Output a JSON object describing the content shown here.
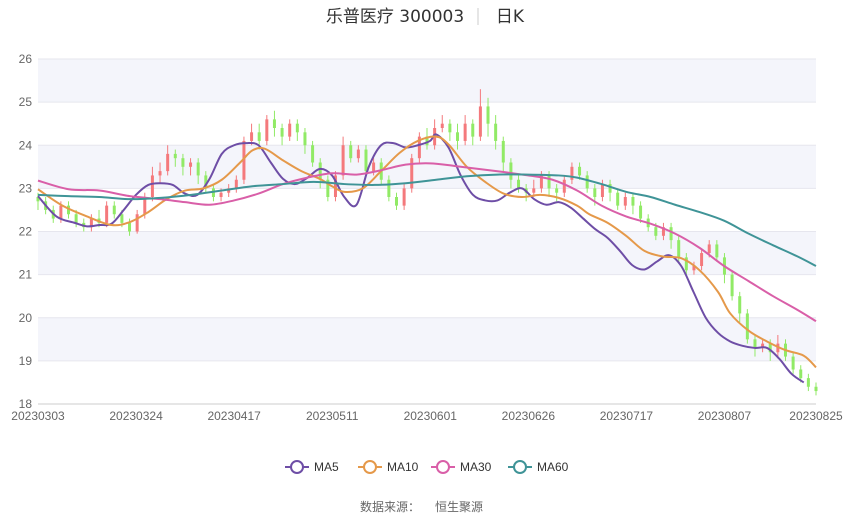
{
  "chart_data": {
    "type": "candlestick",
    "title": "乐普医疗 300003",
    "period_label": "日K",
    "source_label": "数据来源：",
    "source_name": "恒生聚源",
    "ylim": [
      18,
      26
    ],
    "y_ticks": [
      18,
      19,
      20,
      21,
      22,
      23,
      24,
      25,
      26
    ],
    "x_tick_labels": [
      "20230303",
      "20230324",
      "20230417",
      "20230511",
      "20230601",
      "20230626",
      "20230717",
      "20230807",
      "20230825"
    ],
    "x_tick_index": [
      0,
      15,
      30,
      45,
      60,
      75,
      90,
      105,
      119
    ],
    "colors": {
      "up": "#f4797c",
      "down": "#91ea66",
      "MA5": "#6e4ea6",
      "MA10": "#e5994a",
      "MA30": "#d95fa8",
      "MA60": "#3f9497",
      "grid": "#e6e6ee",
      "band": "#f4f5fb"
    },
    "legend": [
      "MA5",
      "MA10",
      "MA30",
      "MA60"
    ],
    "ma_series": [
      {
        "name": "MA5",
        "color_key": "MA5",
        "points": [
          [
            0,
            22.82
          ],
          [
            3,
            22.35
          ],
          [
            6,
            22.2
          ],
          [
            8,
            22.12
          ],
          [
            10,
            22.15
          ],
          [
            12,
            22.18
          ],
          [
            14,
            22.5
          ],
          [
            16,
            22.85
          ],
          [
            18,
            23.08
          ],
          [
            20,
            23.12
          ],
          [
            22,
            23.08
          ],
          [
            24,
            22.88
          ],
          [
            26,
            22.85
          ],
          [
            28,
            23.22
          ],
          [
            30,
            23.8
          ],
          [
            32,
            24.0
          ],
          [
            34,
            24.05
          ],
          [
            36,
            24.0
          ],
          [
            38,
            23.6
          ],
          [
            40,
            23.22
          ],
          [
            42,
            23.1
          ],
          [
            44,
            23.25
          ],
          [
            46,
            23.45
          ],
          [
            48,
            23.3
          ],
          [
            50,
            22.8
          ],
          [
            52,
            22.62
          ],
          [
            54,
            23.5
          ],
          [
            56,
            24.0
          ],
          [
            58,
            24.05
          ],
          [
            60,
            23.95
          ],
          [
            62,
            24.0
          ],
          [
            64,
            24.1
          ],
          [
            65,
            24.25
          ],
          [
            67,
            23.95
          ],
          [
            69,
            23.3
          ],
          [
            71,
            22.85
          ],
          [
            73,
            22.72
          ],
          [
            75,
            22.72
          ],
          [
            77,
            22.9
          ],
          [
            79,
            23.0
          ],
          [
            81,
            22.75
          ],
          [
            83,
            22.62
          ],
          [
            85,
            22.68
          ],
          [
            87,
            22.55
          ],
          [
            89,
            22.3
          ],
          [
            91,
            22.05
          ],
          [
            93,
            21.85
          ],
          [
            95,
            21.55
          ],
          [
            97,
            21.22
          ],
          [
            99,
            21.12
          ],
          [
            101,
            21.3
          ],
          [
            103,
            21.45
          ],
          [
            105,
            21.2
          ],
          [
            107,
            20.6
          ],
          [
            109,
            20.0
          ],
          [
            111,
            19.65
          ],
          [
            113,
            19.45
          ],
          [
            115,
            19.35
          ],
          [
            117,
            19.3
          ],
          [
            119,
            19.3
          ],
          [
            121,
            19.05
          ],
          [
            123,
            18.7
          ],
          [
            125,
            18.5
          ]
        ]
      },
      {
        "name": "MA10",
        "color_key": "MA10",
        "points": [
          [
            0,
            22.98
          ],
          [
            4,
            22.6
          ],
          [
            8,
            22.35
          ],
          [
            12,
            22.15
          ],
          [
            15,
            22.22
          ],
          [
            18,
            22.45
          ],
          [
            21,
            22.75
          ],
          [
            24,
            22.95
          ],
          [
            27,
            23.0
          ],
          [
            30,
            23.2
          ],
          [
            33,
            23.6
          ],
          [
            35,
            23.88
          ],
          [
            37,
            23.92
          ],
          [
            40,
            23.65
          ],
          [
            43,
            23.4
          ],
          [
            46,
            23.22
          ],
          [
            48,
            23.05
          ],
          [
            50,
            22.92
          ],
          [
            53,
            23.0
          ],
          [
            56,
            23.4
          ],
          [
            59,
            23.82
          ],
          [
            62,
            24.1
          ],
          [
            65,
            24.2
          ],
          [
            67,
            24.02
          ],
          [
            70,
            23.5
          ],
          [
            73,
            23.15
          ],
          [
            76,
            22.88
          ],
          [
            79,
            22.8
          ],
          [
            82,
            22.85
          ],
          [
            85,
            22.78
          ],
          [
            88,
            22.6
          ],
          [
            90,
            22.4
          ],
          [
            93,
            22.2
          ],
          [
            96,
            21.9
          ],
          [
            99,
            21.55
          ],
          [
            102,
            21.42
          ],
          [
            105,
            21.38
          ],
          [
            108,
            21.1
          ],
          [
            111,
            20.6
          ],
          [
            113,
            20.1
          ],
          [
            116,
            19.7
          ],
          [
            119,
            19.45
          ],
          [
            122,
            19.25
          ],
          [
            125,
            19.12
          ],
          [
            127,
            18.85
          ]
        ]
      },
      {
        "name": "MA30",
        "color_key": "MA30",
        "points": [
          [
            0,
            23.18
          ],
          [
            5,
            22.98
          ],
          [
            10,
            22.95
          ],
          [
            15,
            22.82
          ],
          [
            20,
            22.75
          ],
          [
            24,
            22.68
          ],
          [
            28,
            22.62
          ],
          [
            32,
            22.72
          ],
          [
            36,
            22.88
          ],
          [
            40,
            23.1
          ],
          [
            44,
            23.25
          ],
          [
            48,
            23.35
          ],
          [
            52,
            23.32
          ],
          [
            56,
            23.42
          ],
          [
            60,
            23.55
          ],
          [
            64,
            23.58
          ],
          [
            68,
            23.52
          ],
          [
            72,
            23.45
          ],
          [
            76,
            23.38
          ],
          [
            80,
            23.3
          ],
          [
            84,
            23.2
          ],
          [
            88,
            22.95
          ],
          [
            92,
            22.6
          ],
          [
            96,
            22.35
          ],
          [
            100,
            22.18
          ],
          [
            104,
            21.95
          ],
          [
            108,
            21.62
          ],
          [
            112,
            21.2
          ],
          [
            116,
            20.85
          ],
          [
            120,
            20.5
          ],
          [
            124,
            20.18
          ],
          [
            127,
            19.92
          ]
        ]
      },
      {
        "name": "MA60",
        "color_key": "MA60",
        "points": [
          [
            0,
            22.85
          ],
          [
            5,
            22.82
          ],
          [
            10,
            22.8
          ],
          [
            15,
            22.75
          ],
          [
            20,
            22.78
          ],
          [
            25,
            22.85
          ],
          [
            30,
            22.95
          ],
          [
            35,
            23.05
          ],
          [
            40,
            23.1
          ],
          [
            45,
            23.15
          ],
          [
            50,
            23.1
          ],
          [
            55,
            23.08
          ],
          [
            60,
            23.12
          ],
          [
            65,
            23.2
          ],
          [
            70,
            23.28
          ],
          [
            75,
            23.32
          ],
          [
            80,
            23.32
          ],
          [
            85,
            23.3
          ],
          [
            88,
            23.25
          ],
          [
            92,
            23.1
          ],
          [
            96,
            22.92
          ],
          [
            100,
            22.8
          ],
          [
            104,
            22.62
          ],
          [
            108,
            22.45
          ],
          [
            112,
            22.25
          ],
          [
            116,
            21.95
          ],
          [
            120,
            21.68
          ],
          [
            124,
            21.42
          ],
          [
            127,
            21.2
          ]
        ]
      }
    ],
    "candles": [
      [
        22.8,
        22.7,
        22.9,
        22.5
      ],
      [
        22.7,
        22.5,
        22.8,
        22.4
      ],
      [
        22.5,
        22.3,
        22.6,
        22.2
      ],
      [
        22.3,
        22.6,
        22.7,
        22.2
      ],
      [
        22.6,
        22.4,
        22.7,
        22.3
      ],
      [
        22.4,
        22.2,
        22.5,
        22.1
      ],
      [
        22.2,
        22.1,
        22.3,
        22.0
      ],
      [
        22.1,
        22.3,
        22.4,
        22.0
      ],
      [
        22.3,
        22.2,
        22.5,
        22.1
      ],
      [
        22.2,
        22.6,
        22.7,
        22.1
      ],
      [
        22.6,
        22.4,
        22.7,
        22.3
      ],
      [
        22.4,
        22.2,
        22.5,
        22.1
      ],
      [
        22.2,
        22.0,
        22.3,
        21.9
      ],
      [
        22.0,
        22.4,
        22.5,
        21.95
      ],
      [
        22.4,
        22.8,
        22.9,
        22.3
      ],
      [
        22.8,
        23.3,
        23.5,
        22.7
      ],
      [
        23.3,
        23.4,
        23.6,
        23.1
      ],
      [
        23.4,
        23.8,
        24.0,
        23.3
      ],
      [
        23.8,
        23.7,
        23.9,
        23.5
      ],
      [
        23.7,
        23.5,
        23.8,
        23.3
      ],
      [
        23.5,
        23.6,
        23.7,
        23.3
      ],
      [
        23.6,
        23.3,
        23.7,
        23.1
      ],
      [
        23.3,
        23.0,
        23.4,
        22.9
      ],
      [
        23.0,
        22.8,
        23.1,
        22.7
      ],
      [
        22.8,
        22.9,
        23.0,
        22.7
      ],
      [
        22.9,
        23.0,
        23.1,
        22.8
      ],
      [
        23.0,
        23.2,
        23.3,
        22.9
      ],
      [
        23.2,
        24.1,
        24.2,
        23.1
      ],
      [
        24.1,
        24.3,
        24.5,
        24.0
      ],
      [
        24.3,
        24.1,
        24.5,
        23.9
      ],
      [
        24.1,
        24.6,
        24.7,
        24.0
      ],
      [
        24.6,
        24.4,
        24.8,
        24.2
      ],
      [
        24.4,
        24.2,
        24.5,
        24.0
      ],
      [
        24.2,
        24.5,
        24.6,
        24.1
      ],
      [
        24.5,
        24.3,
        24.6,
        24.1
      ],
      [
        24.3,
        24.0,
        24.4,
        23.8
      ],
      [
        24.0,
        23.6,
        24.1,
        23.5
      ],
      [
        23.6,
        23.2,
        23.7,
        23.0
      ],
      [
        23.2,
        22.8,
        23.3,
        22.7
      ],
      [
        22.8,
        23.3,
        23.4,
        22.7
      ],
      [
        23.3,
        24.0,
        24.2,
        23.2
      ],
      [
        24.0,
        23.7,
        24.1,
        23.6
      ],
      [
        23.7,
        23.9,
        24.0,
        23.6
      ],
      [
        23.9,
        23.4,
        24.0,
        23.3
      ],
      [
        23.4,
        23.6,
        23.7,
        23.3
      ],
      [
        23.6,
        23.2,
        23.7,
        23.1
      ],
      [
        23.2,
        22.8,
        23.3,
        22.7
      ],
      [
        22.8,
        22.6,
        22.9,
        22.5
      ],
      [
        22.6,
        23.0,
        23.1,
        22.5
      ],
      [
        23.0,
        23.7,
        23.8,
        22.9
      ],
      [
        23.7,
        24.2,
        24.3,
        23.6
      ],
      [
        24.2,
        24.0,
        24.4,
        23.9
      ],
      [
        24.0,
        24.4,
        24.6,
        23.9
      ],
      [
        24.4,
        24.5,
        24.7,
        24.3
      ],
      [
        24.5,
        24.3,
        24.6,
        24.1
      ],
      [
        24.3,
        24.1,
        24.5,
        23.9
      ],
      [
        24.1,
        24.5,
        24.7,
        24.0
      ],
      [
        24.5,
        24.2,
        24.6,
        24.0
      ],
      [
        24.2,
        24.9,
        25.3,
        24.1
      ],
      [
        24.9,
        24.5,
        25.1,
        24.2
      ],
      [
        24.5,
        24.1,
        24.7,
        23.9
      ],
      [
        24.1,
        23.6,
        24.2,
        23.4
      ],
      [
        23.6,
        23.2,
        23.7,
        23.0
      ],
      [
        23.2,
        23.0,
        23.3,
        22.9
      ],
      [
        23.0,
        22.9,
        23.1,
        22.7
      ],
      [
        22.9,
        23.0,
        23.2,
        22.8
      ],
      [
        23.0,
        23.3,
        23.4,
        22.9
      ],
      [
        23.3,
        23.0,
        23.4,
        22.8
      ],
      [
        23.0,
        22.9,
        23.1,
        22.7
      ],
      [
        22.9,
        23.2,
        23.3,
        22.8
      ],
      [
        23.2,
        23.5,
        23.6,
        23.1
      ],
      [
        23.5,
        23.3,
        23.6,
        23.2
      ],
      [
        23.3,
        23.0,
        23.4,
        22.9
      ],
      [
        23.0,
        22.8,
        23.1,
        22.6
      ],
      [
        22.8,
        23.1,
        23.2,
        22.7
      ],
      [
        23.1,
        22.9,
        23.2,
        22.7
      ],
      [
        22.9,
        22.6,
        23.0,
        22.5
      ],
      [
        22.6,
        22.8,
        22.9,
        22.5
      ],
      [
        22.8,
        22.6,
        22.9,
        22.4
      ],
      [
        22.6,
        22.3,
        22.7,
        22.2
      ],
      [
        22.3,
        22.1,
        22.4,
        22.0
      ],
      [
        22.1,
        21.9,
        22.2,
        21.8
      ],
      [
        21.9,
        22.1,
        22.2,
        21.8
      ],
      [
        22.1,
        21.8,
        22.2,
        21.6
      ],
      [
        21.8,
        21.4,
        21.9,
        21.3
      ],
      [
        21.4,
        21.1,
        21.5,
        21.0
      ],
      [
        21.1,
        21.2,
        21.3,
        21.0
      ],
      [
        21.2,
        21.5,
        21.6,
        21.1
      ],
      [
        21.5,
        21.7,
        21.8,
        21.4
      ],
      [
        21.7,
        21.4,
        21.8,
        21.3
      ],
      [
        21.4,
        21.0,
        21.5,
        20.8
      ],
      [
        21.0,
        20.5,
        21.1,
        20.4
      ],
      [
        20.5,
        20.1,
        20.6,
        19.9
      ],
      [
        20.1,
        19.5,
        20.2,
        19.4
      ],
      [
        19.5,
        19.3,
        19.6,
        19.1
      ],
      [
        19.3,
        19.4,
        19.5,
        19.2
      ],
      [
        19.4,
        19.2,
        19.5,
        19.0
      ],
      [
        19.2,
        19.4,
        19.6,
        19.1
      ],
      [
        19.4,
        19.1,
        19.5,
        19.0
      ],
      [
        19.1,
        18.8,
        19.2,
        18.7
      ],
      [
        18.8,
        18.6,
        18.9,
        18.5
      ],
      [
        18.6,
        18.4,
        18.7,
        18.3
      ],
      [
        18.4,
        18.3,
        18.5,
        18.2
      ]
    ]
  }
}
